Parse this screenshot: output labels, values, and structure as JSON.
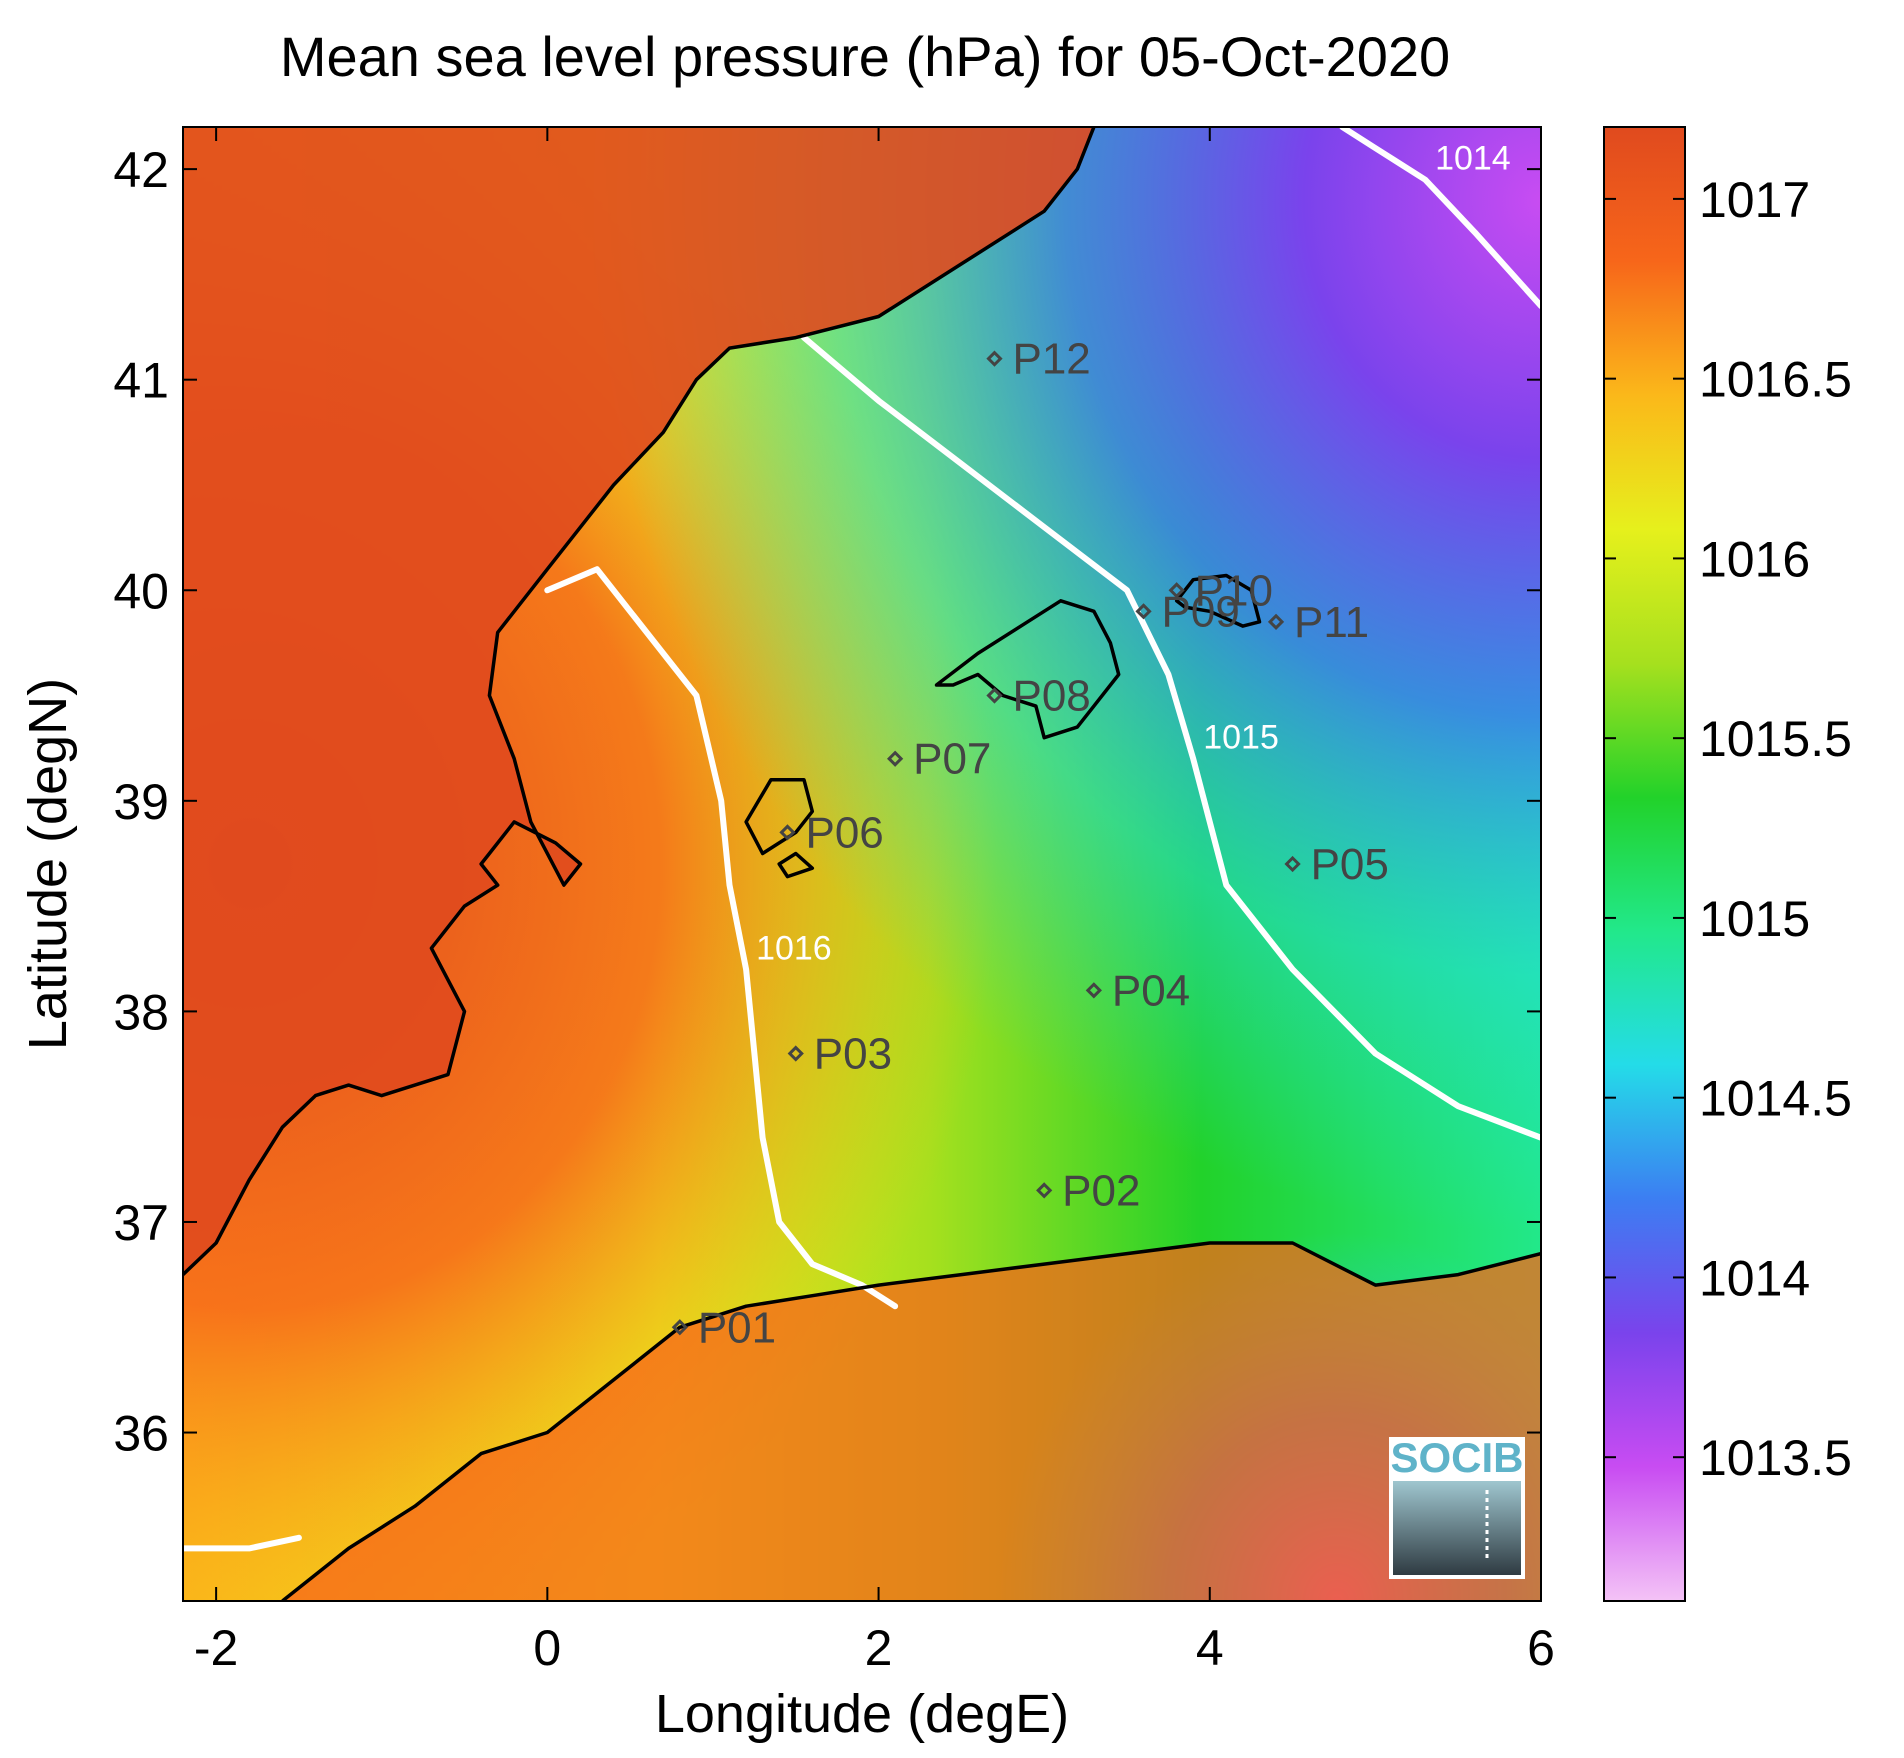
{
  "figure": {
    "title": "Mean sea level pressure (hPa) for 05-Oct-2020",
    "xlabel": "Longitude (degE)",
    "ylabel": "Latitude (degN)",
    "logo_text": "SOCIB"
  },
  "chart_data": {
    "type": "heatmap",
    "title": "Mean sea level pressure (hPa) for 05-Oct-2020",
    "xlabel": "Longitude (degE)",
    "ylabel": "Latitude (degN)",
    "xlim": [
      -2.2,
      6.0
    ],
    "ylim": [
      35.2,
      42.2
    ],
    "x_ticks": [
      -2,
      0,
      2,
      4,
      6
    ],
    "x_tick_labels": [
      "-2",
      "0",
      "2",
      "4",
      "6"
    ],
    "y_ticks": [
      36,
      37,
      38,
      39,
      40,
      41,
      42
    ],
    "y_tick_labels": [
      "36",
      "37",
      "38",
      "39",
      "40",
      "41",
      "42"
    ],
    "colorbar": {
      "range": [
        1013.1,
        1017.2
      ],
      "ticks": [
        1013.5,
        1014,
        1014.5,
        1015,
        1015.5,
        1016,
        1016.5,
        1017
      ],
      "tick_labels": [
        "1013.5",
        "1014",
        "1014.5",
        "1015",
        "1015.5",
        "1016",
        "1016.5",
        "1017"
      ],
      "colormap": [
        "#f4c3f6",
        "#c84cf2",
        "#7a43ec",
        "#3c7ef2",
        "#24dce8",
        "#22e88a",
        "#22d22a",
        "#a6e01e",
        "#e6f01c",
        "#fbb81a",
        "#f7661a",
        "#e04a1e"
      ]
    },
    "contours": [
      {
        "level": 1014,
        "label": "1014",
        "lon": [
          4.8,
          5.0,
          5.3,
          5.6,
          6.0
        ],
        "lat": [
          42.2,
          42.1,
          41.95,
          41.7,
          41.35
        ]
      },
      {
        "level": 1015,
        "label": "1015",
        "lon": [
          1.55,
          2.0,
          2.5,
          3.0,
          3.5,
          3.75,
          3.9,
          4.1,
          4.5,
          5.0,
          5.5,
          6.0
        ],
        "lat": [
          41.2,
          40.9,
          40.6,
          40.3,
          40.0,
          39.6,
          39.2,
          38.6,
          38.2,
          37.8,
          37.55,
          37.4
        ]
      },
      {
        "level": 1016,
        "label": "1016",
        "lon": [
          0.0,
          0.3,
          0.5,
          0.9,
          1.05,
          1.1,
          1.2,
          1.25,
          1.3,
          1.4,
          1.6,
          1.9,
          2.1
        ],
        "lat": [
          40.0,
          40.1,
          39.9,
          39.5,
          39.0,
          38.6,
          38.2,
          37.8,
          37.4,
          37.0,
          36.8,
          36.7,
          36.6
        ]
      },
      {
        "level": 1016,
        "label": "",
        "lon": [
          -2.2,
          -1.8,
          -1.5
        ],
        "lat": [
          35.45,
          35.45,
          35.5
        ]
      }
    ],
    "points": [
      {
        "label": "P01",
        "lon": 0.8,
        "lat": 36.5
      },
      {
        "label": "P02",
        "lon": 3.0,
        "lat": 37.15
      },
      {
        "label": "P03",
        "lon": 1.5,
        "lat": 37.8
      },
      {
        "label": "P04",
        "lon": 3.3,
        "lat": 38.1
      },
      {
        "label": "P05",
        "lon": 4.5,
        "lat": 38.7
      },
      {
        "label": "P06",
        "lon": 1.45,
        "lat": 38.85
      },
      {
        "label": "P07",
        "lon": 2.1,
        "lat": 39.2
      },
      {
        "label": "P08",
        "lon": 2.7,
        "lat": 39.5
      },
      {
        "label": "P09",
        "lon": 3.6,
        "lat": 39.9
      },
      {
        "label": "P10",
        "lon": 3.8,
        "lat": 40.0
      },
      {
        "label": "P11",
        "lon": 4.4,
        "lat": 39.85
      },
      {
        "label": "P12",
        "lon": 2.7,
        "lat": 41.1
      }
    ],
    "coastlines": [
      {
        "name": "iberian-coast",
        "lon": [
          -2.2,
          -2.0,
          -1.8,
          -1.6,
          -1.4,
          -1.2,
          -1.0,
          -0.8,
          -0.6,
          -0.5,
          -0.7,
          -0.5,
          -0.3,
          -0.4,
          -0.35,
          -0.2,
          0.05,
          0.2,
          0.1,
          -0.1,
          -0.2,
          -0.35,
          -0.3,
          0.0,
          0.4,
          0.7,
          0.9,
          1.1,
          1.5,
          2.0,
          2.5,
          3.0,
          3.2,
          3.3
        ],
        "lat": [
          36.75,
          36.9,
          37.2,
          37.45,
          37.6,
          37.65,
          37.6,
          37.65,
          37.7,
          38.0,
          38.3,
          38.5,
          38.6,
          38.7,
          38.75,
          38.9,
          38.8,
          38.7,
          38.6,
          38.9,
          39.2,
          39.5,
          39.8,
          40.1,
          40.5,
          40.75,
          41.0,
          41.15,
          41.2,
          41.3,
          41.55,
          41.8,
          42.0,
          42.2
        ]
      },
      {
        "name": "north-africa-coast",
        "lon": [
          -1.6,
          -1.2,
          -0.8,
          -0.4,
          0.0,
          0.4,
          0.8,
          1.2,
          1.6,
          2.0,
          2.5,
          3.0,
          3.5,
          4.0,
          4.5,
          5.0,
          5.5,
          6.0
        ],
        "lat": [
          35.2,
          35.45,
          35.65,
          35.9,
          36.0,
          36.25,
          36.5,
          36.6,
          36.65,
          36.7,
          36.75,
          36.8,
          36.85,
          36.9,
          36.9,
          36.7,
          36.75,
          36.85
        ]
      },
      {
        "name": "mallorca",
        "lon": [
          2.35,
          2.6,
          2.9,
          3.1,
          3.3,
          3.4,
          3.45,
          3.3,
          3.2,
          3.0,
          2.95,
          2.75,
          2.6,
          2.45,
          2.35
        ],
        "lat": [
          39.55,
          39.7,
          39.85,
          39.95,
          39.9,
          39.75,
          39.6,
          39.45,
          39.35,
          39.3,
          39.45,
          39.5,
          39.6,
          39.55,
          39.55
        ]
      },
      {
        "name": "menorca",
        "lon": [
          3.8,
          3.9,
          4.1,
          4.25,
          4.3,
          4.2,
          4.0,
          3.85,
          3.8
        ],
        "lat": [
          39.95,
          40.05,
          40.07,
          40.0,
          39.85,
          39.83,
          39.9,
          39.92,
          39.95
        ]
      },
      {
        "name": "ibiza",
        "lon": [
          1.2,
          1.35,
          1.55,
          1.6,
          1.5,
          1.4,
          1.3,
          1.2
        ],
        "lat": [
          38.9,
          39.1,
          39.1,
          38.95,
          38.85,
          38.8,
          38.75,
          38.9
        ]
      },
      {
        "name": "formentera",
        "lon": [
          1.4,
          1.5,
          1.6,
          1.45,
          1.4
        ],
        "lat": [
          38.7,
          38.75,
          38.68,
          38.64,
          38.7
        ]
      }
    ]
  }
}
